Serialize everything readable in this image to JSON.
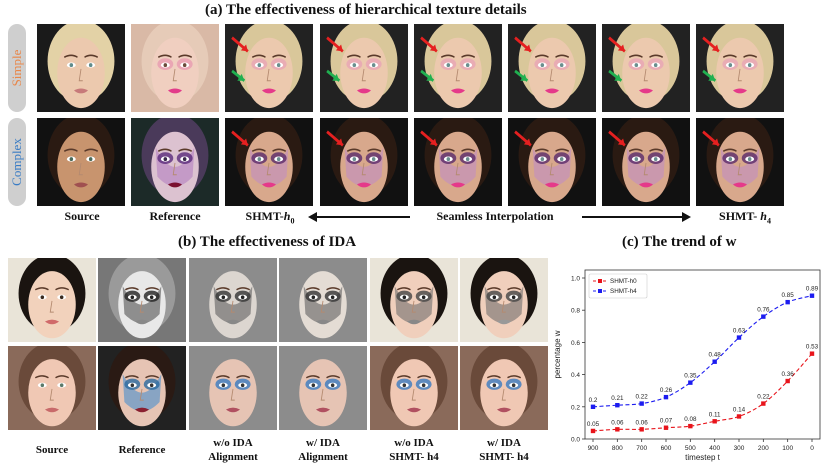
{
  "section_a": {
    "title": "(a) The effectiveness of hierarchical texture details",
    "row_labels": [
      "Simple",
      "Complex"
    ],
    "captions": {
      "source": "Source",
      "reference": "Reference",
      "left": "SHMT-",
      "left_sub": "h",
      "left_idx": "0",
      "middle": "Seamless Interpolation",
      "right": "SHMT- ",
      "right_sub": "h",
      "right_idx": "4"
    }
  },
  "section_b": {
    "title": "(b) The effectiveness of IDA",
    "captions": [
      {
        "line1": "Source",
        "line2": ""
      },
      {
        "line1": "Reference",
        "line2": ""
      },
      {
        "line1": "w/o IDA",
        "line2": "Alignment"
      },
      {
        "line1": "w/ IDA",
        "line2": "Alignment"
      },
      {
        "line1": "w/o IDA",
        "line2": "SHMT- h4"
      },
      {
        "line1": "w/ IDA",
        "line2": "SHMT- h4"
      }
    ]
  },
  "section_c": {
    "title": "(c) The trend of w"
  },
  "chart_data": {
    "type": "line",
    "x": [
      "900",
      "800",
      "700",
      "600",
      "500",
      "400",
      "300",
      "200",
      "100",
      "0"
    ],
    "xlabel": "timestep t",
    "ylabel": "percentage w",
    "ylim": [
      0,
      1.0
    ],
    "yticks": [
      "0.0",
      "0.2",
      "0.4",
      "0.6",
      "0.8",
      "1.0"
    ],
    "legend_position": "top-left",
    "grid": false,
    "series": [
      {
        "name": "SHMT-h0",
        "color": "#e8141b",
        "values": [
          0.05,
          0.06,
          0.06,
          0.07,
          0.08,
          0.11,
          0.14,
          0.22,
          0.36,
          0.53
        ],
        "labels": [
          "0.05",
          "0.06",
          "0.06",
          "0.07",
          "0.08",
          "0.11",
          "0.14",
          "0.22",
          "0.36",
          "0.53"
        ]
      },
      {
        "name": "SHMT-h4",
        "color": "#1c1cf0",
        "values": [
          0.2,
          0.21,
          0.22,
          0.26,
          0.35,
          0.48,
          0.63,
          0.76,
          0.85,
          0.89
        ],
        "labels": [
          "0.2",
          "0.21",
          "0.22",
          "0.26",
          "0.35",
          "0.48",
          "0.63",
          "0.76",
          "0.85",
          "0.89"
        ]
      }
    ]
  },
  "colors": {
    "simple_label": "#e8874a",
    "complex_label": "#3a7cc4",
    "arrow_red": "#e52020",
    "arrow_green": "#20b050"
  }
}
